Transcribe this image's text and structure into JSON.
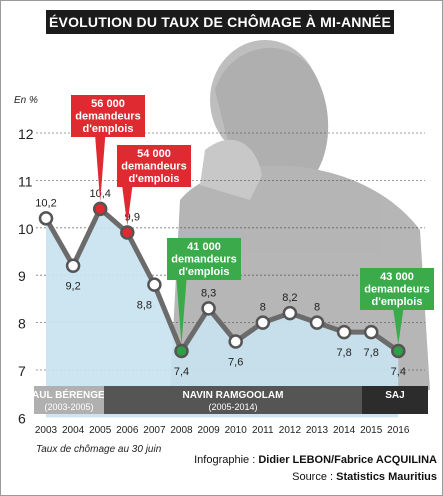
{
  "title": "ÉVOLUTION DU TAUX DE CHÔMAGE À MI-ANNÉE",
  "colors": {
    "area": "#c9e3f0",
    "line": "#6b6b6b",
    "marker_red": "#e02a32",
    "marker_green": "#2f9e47",
    "callout_red": "#e02a32",
    "callout_green": "#3aaa4a",
    "period_band": "#555555"
  },
  "chart_data": {
    "type": "line",
    "unit_label": "En %",
    "x": [
      "2003",
      "2004",
      "2005",
      "2006",
      "2007",
      "2008",
      "2009",
      "2010",
      "2011",
      "2012",
      "2013",
      "2014",
      "2015",
      "2016"
    ],
    "values": [
      10.2,
      9.2,
      10.4,
      9.9,
      8.8,
      7.4,
      8.3,
      7.6,
      8,
      8.2,
      8,
      7.8,
      7.8,
      7.4
    ],
    "value_labels": [
      "10,2",
      "9,2",
      "10,4",
      "9,9",
      "8,8",
      "7,4",
      "8,3",
      "7,6",
      "8",
      "8,2",
      "8",
      "7,8",
      "7,8",
      "7,4"
    ],
    "ylim": [
      6,
      12
    ],
    "y_ticks": [
      "6",
      "7",
      "8",
      "9",
      "10",
      "11",
      "12"
    ],
    "grid": true,
    "x_note": "Taux de chômage au 30 juin",
    "callouts": [
      {
        "year": "2005",
        "color": "red",
        "lines": [
          "56 000",
          "demandeurs",
          "d'emplois"
        ]
      },
      {
        "year": "2006",
        "color": "red",
        "lines": [
          "54 000",
          "demandeurs",
          "d'emplois"
        ]
      },
      {
        "year": "2008",
        "color": "green",
        "lines": [
          "41 000",
          "demandeurs",
          "d'emplois"
        ]
      },
      {
        "year": "2016",
        "color": "green",
        "lines": [
          "43 000",
          "demandeurs",
          "d'emplois"
        ]
      }
    ],
    "periods": [
      {
        "name": "PAUL BÉRENGER",
        "range": "(2003-2005)",
        "shade": "#b0b0b0"
      },
      {
        "name": "NAVIN RAMGOOLAM",
        "range": "(2005-2014)",
        "shade": "#555555"
      },
      {
        "name": "SAJ",
        "range": "",
        "shade": "#2c2c2c"
      }
    ]
  },
  "footer": {
    "graphic_prefix": "Infographie : ",
    "graphic_names": "Didier LEBON/Fabrice ACQUILINA",
    "source_prefix": "Source : ",
    "source_name": "Statistics Mauritius"
  }
}
